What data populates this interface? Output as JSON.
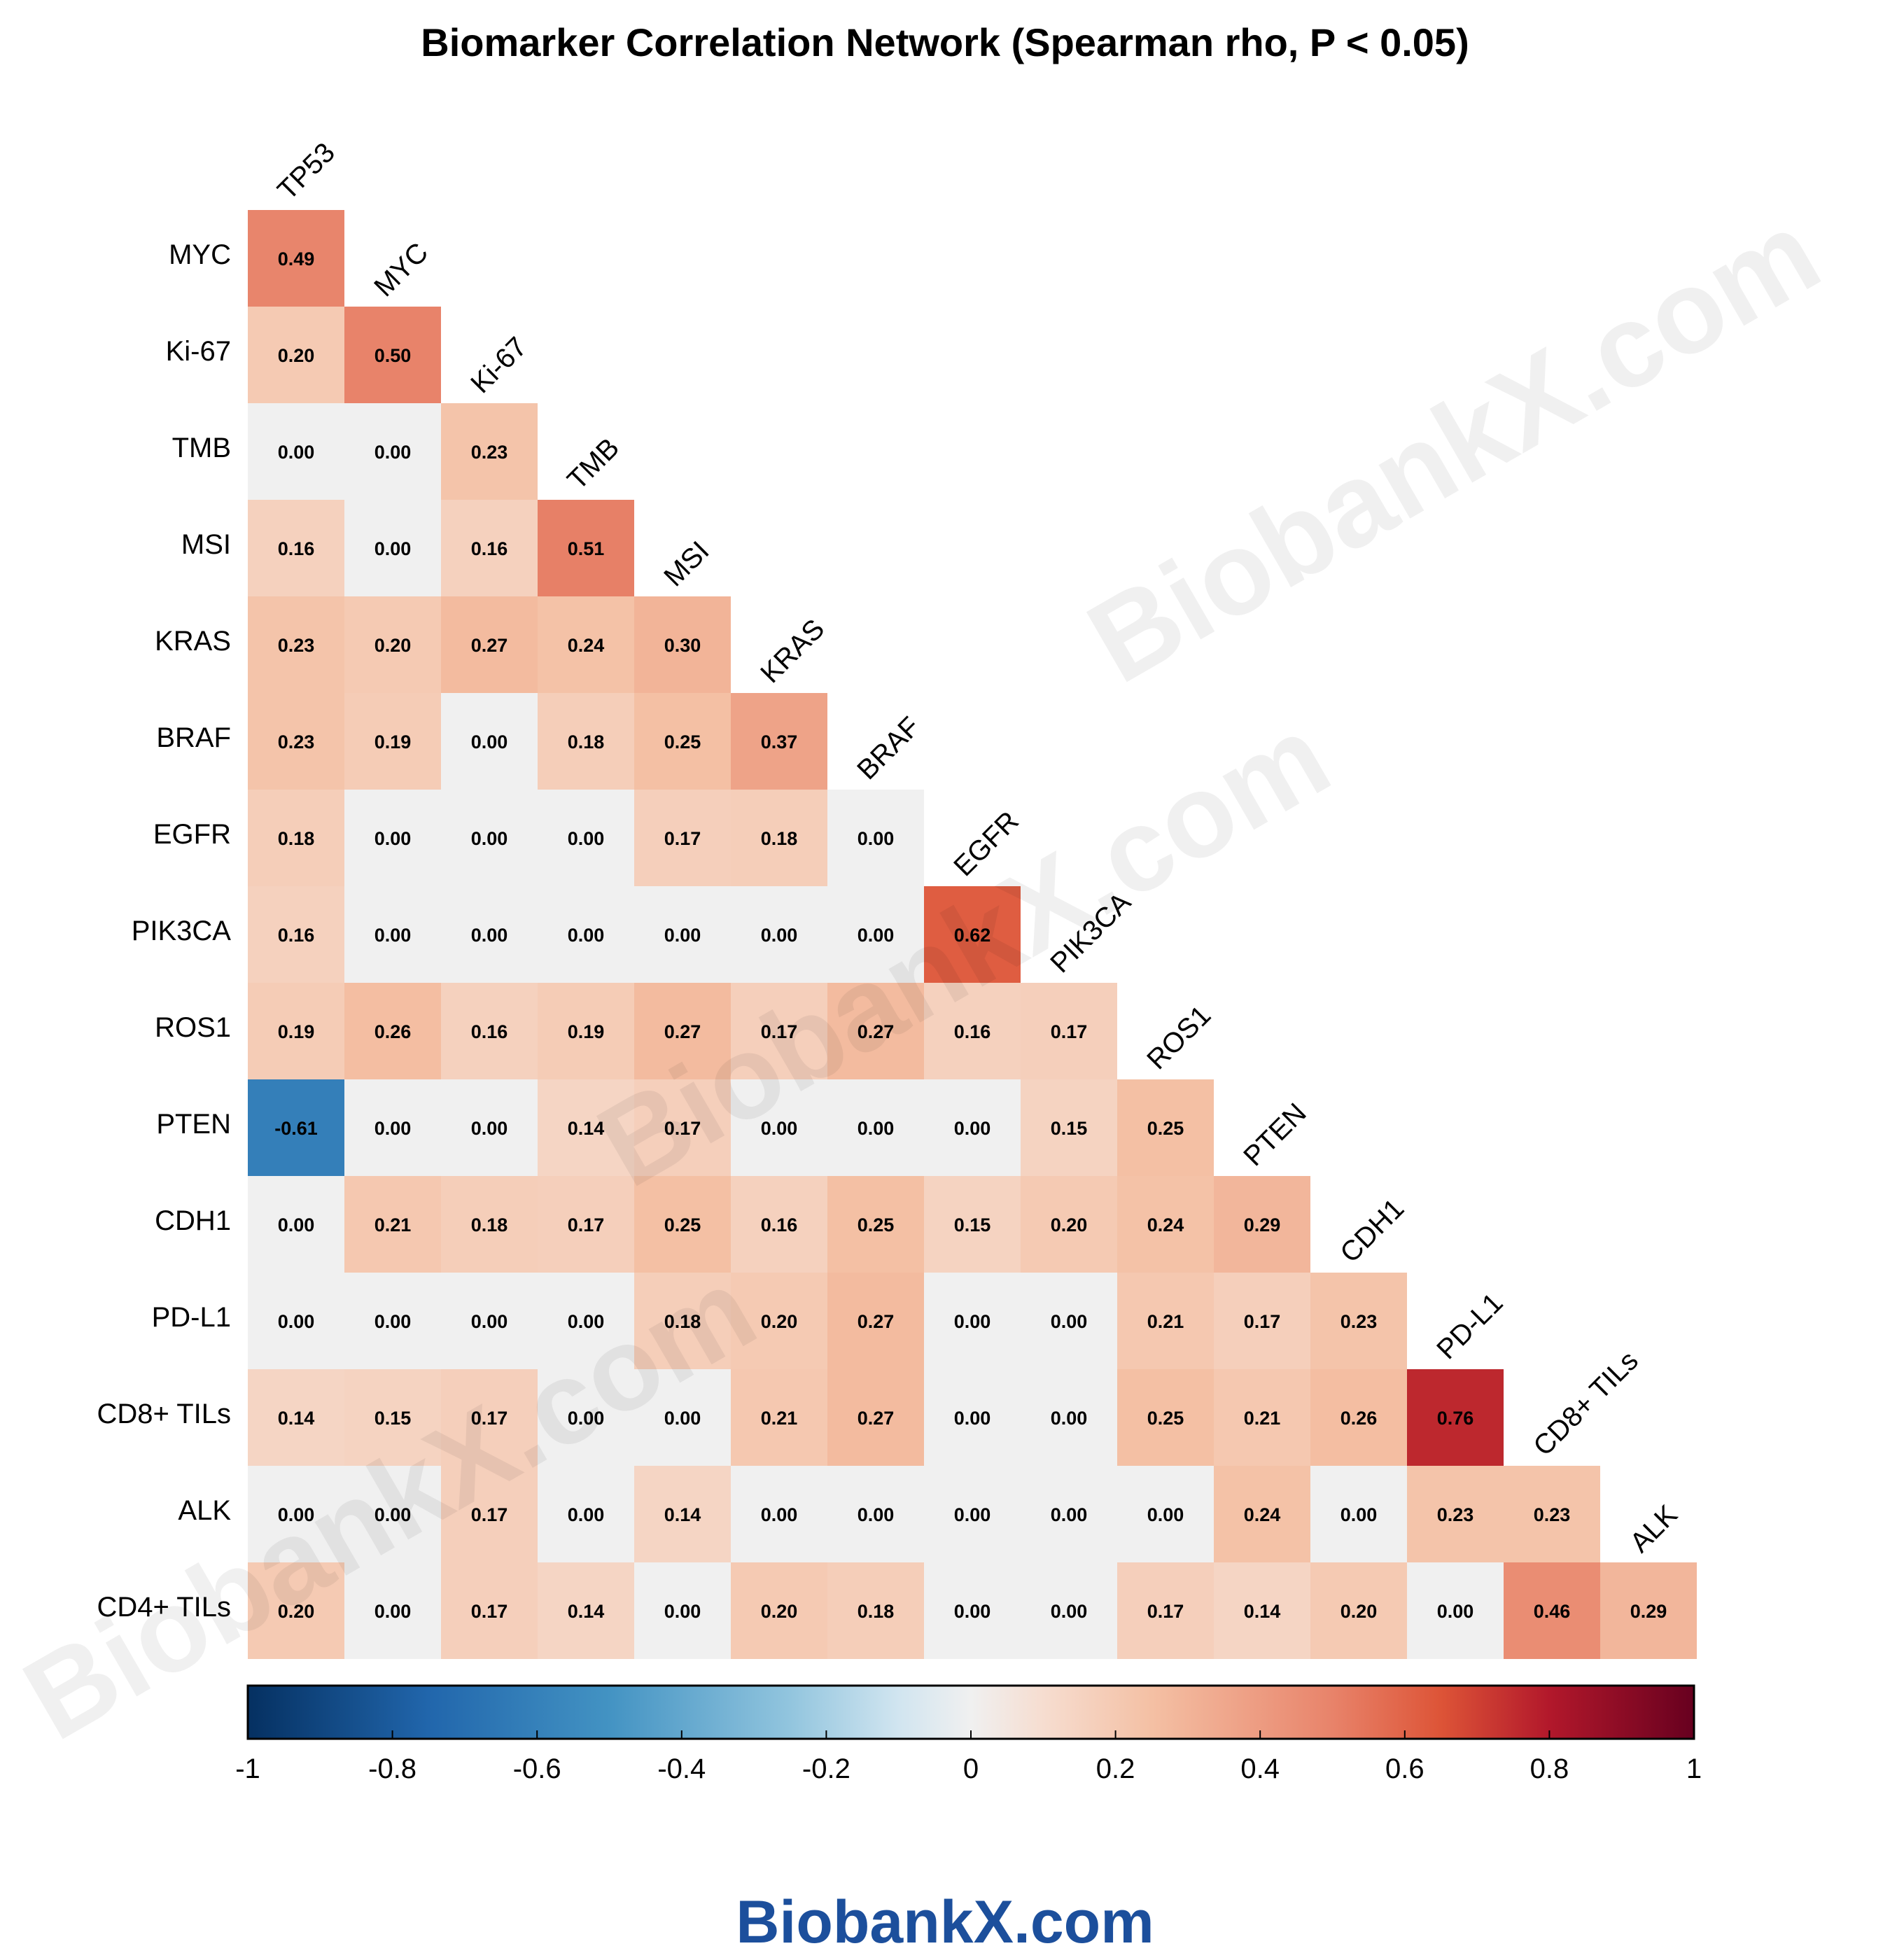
{
  "chart_data": {
    "type": "heatmap",
    "title": "Biomarker Correlation Network (Spearman rho, P < 0.05)",
    "column_labels": [
      "TP53",
      "MYC",
      "Ki-67",
      "TMB",
      "MSI",
      "KRAS",
      "BRAF",
      "EGFR",
      "PIK3CA",
      "ROS1",
      "PTEN",
      "CDH1",
      "PD-L1",
      "CD8+ TILs",
      "ALK"
    ],
    "row_labels": [
      "MYC",
      "Ki-67",
      "TMB",
      "MSI",
      "KRAS",
      "BRAF",
      "EGFR",
      "PIK3CA",
      "ROS1",
      "PTEN",
      "CDH1",
      "PD-L1",
      "CD8+ TILs",
      "ALK",
      "CD4+ TILs"
    ],
    "values": [
      [
        0.49
      ],
      [
        0.2,
        0.5
      ],
      [
        0.0,
        0.0,
        0.23
      ],
      [
        0.16,
        0.0,
        0.16,
        0.51
      ],
      [
        0.23,
        0.2,
        0.27,
        0.24,
        0.3
      ],
      [
        0.23,
        0.19,
        0.0,
        0.18,
        0.25,
        0.37
      ],
      [
        0.18,
        0.0,
        0.0,
        0.0,
        0.17,
        0.18,
        0.0
      ],
      [
        0.16,
        0.0,
        0.0,
        0.0,
        0.0,
        0.0,
        0.0,
        0.62
      ],
      [
        0.19,
        0.26,
        0.16,
        0.19,
        0.27,
        0.17,
        0.27,
        0.16,
        0.17
      ],
      [
        -0.61,
        0.0,
        0.0,
        0.14,
        0.17,
        0.0,
        0.0,
        0.0,
        0.15,
        0.25
      ],
      [
        0.0,
        0.21,
        0.18,
        0.17,
        0.25,
        0.16,
        0.25,
        0.15,
        0.2,
        0.24,
        0.29
      ],
      [
        0.0,
        0.0,
        0.0,
        0.0,
        0.18,
        0.2,
        0.27,
        0.0,
        0.0,
        0.21,
        0.17,
        0.23
      ],
      [
        0.14,
        0.15,
        0.17,
        0.0,
        0.0,
        0.21,
        0.27,
        0.0,
        0.0,
        0.25,
        0.21,
        0.26,
        0.76
      ],
      [
        0.0,
        0.0,
        0.17,
        0.0,
        0.14,
        0.0,
        0.0,
        0.0,
        0.0,
        0.0,
        0.24,
        0.0,
        0.23,
        0.23
      ],
      [
        0.2,
        0.0,
        0.17,
        0.14,
        0.0,
        0.2,
        0.18,
        0.0,
        0.0,
        0.17,
        0.14,
        0.2,
        0.0,
        0.46,
        0.29
      ]
    ],
    "value_range": [
      -1,
      1
    ],
    "colorbar": {
      "ticks": [
        -1,
        -0.8,
        -0.6,
        -0.4,
        -0.2,
        0,
        0.2,
        0.4,
        0.6,
        0.8,
        1
      ],
      "tick_labels": [
        "-1",
        "-0.8",
        "-0.6",
        "-0.4",
        "-0.2",
        "0",
        "0.2",
        "0.4",
        "0.6",
        "0.8",
        "1"
      ],
      "stops": [
        {
          "v": -1.0,
          "color": "#053061"
        },
        {
          "v": -0.75,
          "color": "#2166ac"
        },
        {
          "v": -0.5,
          "color": "#4393c3"
        },
        {
          "v": -0.25,
          "color": "#92c5de"
        },
        {
          "v": -0.1,
          "color": "#d1e5f0"
        },
        {
          "v": 0.0,
          "color": "#f0f0f0"
        },
        {
          "v": 0.1,
          "color": "#f6ddd0"
        },
        {
          "v": 0.25,
          "color": "#f4c0a4"
        },
        {
          "v": 0.5,
          "color": "#e8836a"
        },
        {
          "v": 0.65,
          "color": "#dd5437"
        },
        {
          "v": 0.8,
          "color": "#b2182b"
        },
        {
          "v": 1.0,
          "color": "#67001f"
        }
      ]
    }
  },
  "watermark_text": "BiobankX.com",
  "footer_text": "BiobankX.com"
}
